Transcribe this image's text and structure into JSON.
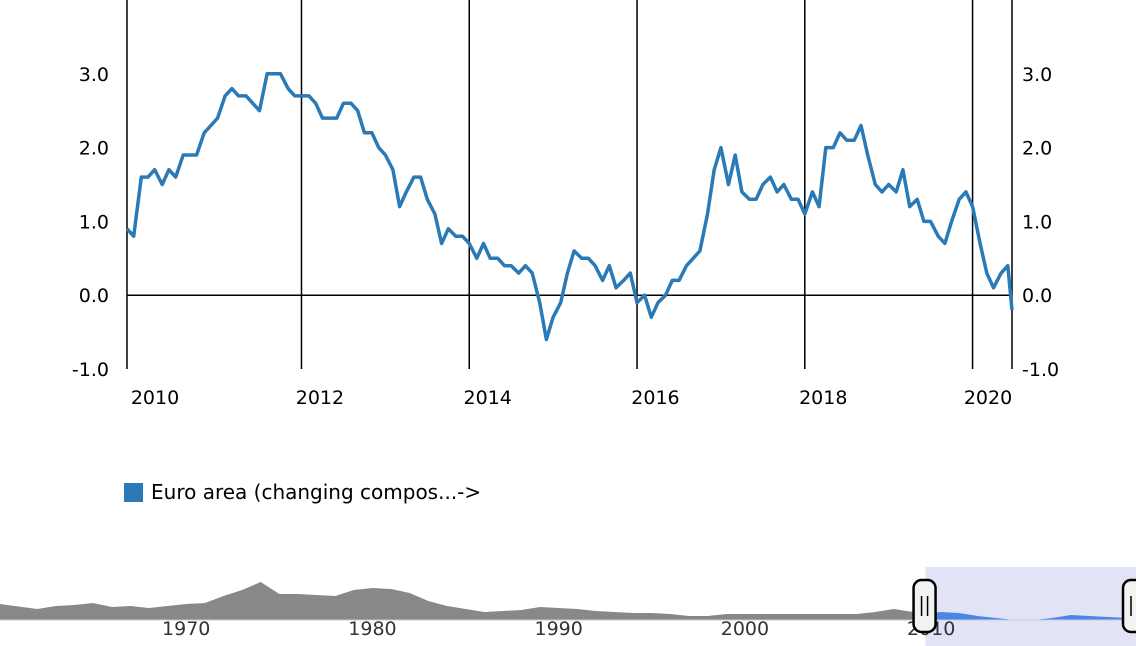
{
  "chart_data": {
    "type": "line",
    "title": "",
    "xlabel": "",
    "ylabel": "",
    "xlim": [
      2009.7,
      2020.25
    ],
    "ylim": [
      -1.0,
      4.0
    ],
    "y_ticks": [
      -1.0,
      0.0,
      1.0,
      2.0,
      3.0
    ],
    "y_tick_labels": [
      "-1.0",
      "0.0",
      "1.0",
      "2.0",
      "3.0"
    ],
    "x_ticks": [
      2010,
      2012,
      2014,
      2016,
      2018,
      2020
    ],
    "x_tick_labels": [
      "2010",
      "2012",
      "2014",
      "2016",
      "2018",
      "2020"
    ],
    "grid": "vertical lines at even years; horizontal line at 0.0",
    "legend_position": "bottom-left",
    "series": [
      {
        "name": "Euro area (changing compos...->",
        "color": "#2a7ab8",
        "x": [
          2009.7,
          2009.78,
          2009.87,
          2009.95,
          2010.03,
          2010.12,
          2010.2,
          2010.28,
          2010.37,
          2010.45,
          2010.53,
          2010.62,
          2010.7,
          2010.78,
          2010.87,
          2010.95,
          2011.03,
          2011.12,
          2011.2,
          2011.28,
          2011.37,
          2011.45,
          2011.53,
          2011.62,
          2011.7,
          2011.78,
          2011.87,
          2011.95,
          2012.03,
          2012.12,
          2012.2,
          2012.28,
          2012.37,
          2012.45,
          2012.53,
          2012.62,
          2012.7,
          2012.78,
          2012.87,
          2012.95,
          2013.03,
          2013.12,
          2013.2,
          2013.28,
          2013.37,
          2013.45,
          2013.53,
          2013.62,
          2013.7,
          2013.78,
          2013.87,
          2013.95,
          2014.03,
          2014.12,
          2014.2,
          2014.28,
          2014.37,
          2014.45,
          2014.53,
          2014.62,
          2014.7,
          2014.78,
          2014.87,
          2014.95,
          2015.03,
          2015.12,
          2015.2,
          2015.28,
          2015.37,
          2015.45,
          2015.53,
          2015.62,
          2015.7,
          2015.78,
          2015.87,
          2015.95,
          2016.03,
          2016.12,
          2016.2,
          2016.28,
          2016.37,
          2016.45,
          2016.53,
          2016.62,
          2016.7,
          2016.78,
          2016.87,
          2016.95,
          2017.03,
          2017.12,
          2017.2,
          2017.28,
          2017.37,
          2017.45,
          2017.53,
          2017.62,
          2017.7,
          2017.78,
          2017.87,
          2017.95,
          2018.03,
          2018.12,
          2018.2,
          2018.28,
          2018.37,
          2018.45,
          2018.53,
          2018.62,
          2018.7,
          2018.78,
          2018.87,
          2018.95,
          2019.03,
          2019.12,
          2019.2,
          2019.28,
          2019.37,
          2019.45,
          2019.53,
          2019.62,
          2019.7,
          2019.78,
          2019.87,
          2019.95,
          2020.03,
          2020.12,
          2020.2,
          2020.25
        ],
        "values": [
          0.9,
          0.8,
          1.6,
          1.6,
          1.7,
          1.5,
          1.7,
          1.6,
          1.9,
          1.9,
          1.9,
          2.2,
          2.3,
          2.4,
          2.7,
          2.8,
          2.7,
          2.7,
          2.6,
          2.5,
          3.0,
          3.0,
          3.0,
          2.8,
          2.7,
          2.7,
          2.7,
          2.6,
          2.4,
          2.4,
          2.4,
          2.6,
          2.6,
          2.5,
          2.2,
          2.2,
          2.0,
          1.9,
          1.7,
          1.2,
          1.4,
          1.6,
          1.6,
          1.3,
          1.1,
          0.7,
          0.9,
          0.8,
          0.8,
          0.7,
          0.5,
          0.7,
          0.5,
          0.5,
          0.4,
          0.4,
          0.3,
          0.4,
          0.3,
          -0.1,
          -0.6,
          -0.3,
          -0.1,
          0.3,
          0.6,
          0.5,
          0.5,
          0.4,
          0.2,
          0.4,
          0.1,
          0.2,
          0.3,
          -0.1,
          0.0,
          -0.3,
          -0.1,
          0.0,
          0.2,
          0.2,
          0.4,
          0.5,
          0.6,
          1.1,
          1.7,
          2.0,
          1.5,
          1.9,
          1.4,
          1.3,
          1.3,
          1.5,
          1.6,
          1.4,
          1.5,
          1.3,
          1.3,
          1.1,
          1.4,
          1.2,
          2.0,
          2.0,
          2.2,
          2.1,
          2.1,
          2.3,
          1.9,
          1.5,
          1.4,
          1.5,
          1.4,
          1.7,
          1.2,
          1.3,
          1.0,
          1.0,
          0.8,
          0.7,
          1.0,
          1.3,
          1.4,
          1.2,
          0.7,
          0.3,
          0.1,
          0.3,
          0.4,
          -0.2
        ]
      }
    ]
  },
  "navigator": {
    "tick_labels": [
      "1970",
      "1980",
      "1990",
      "2000",
      "2010"
    ],
    "tick_years": [
      1970,
      1980,
      1990,
      2000,
      2010
    ],
    "range_years": [
      1960,
      2021
    ],
    "window_years": [
      2009.7,
      2021
    ],
    "fill_color": "#888888",
    "highlight_fill_color": "#4a86e8",
    "mask_color": "#e3e3f7"
  }
}
